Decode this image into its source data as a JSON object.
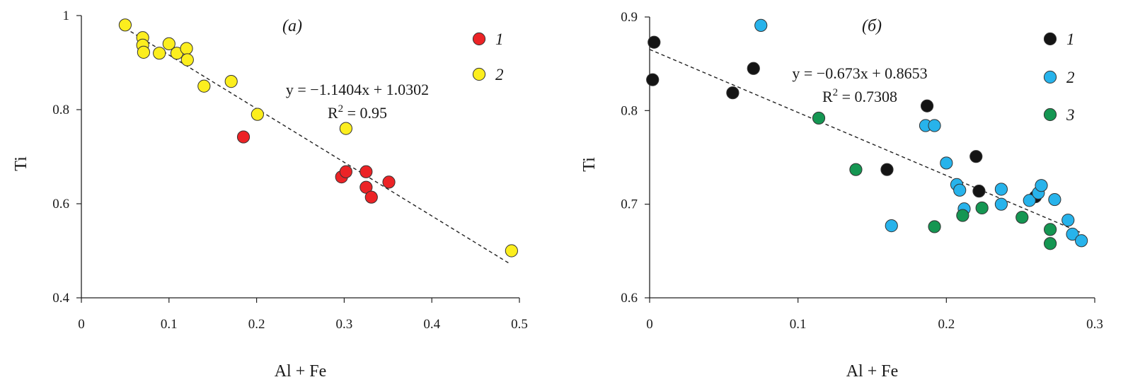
{
  "chart_data": [
    {
      "type": "scatter",
      "panel_label": "(a)",
      "xlabel": "Al + Fe",
      "ylabel": "Ti",
      "xlim": [
        0,
        0.5
      ],
      "ylim": [
        0.4,
        1.0
      ],
      "xticks": [
        "0",
        "0.1",
        "0.2",
        "0.3",
        "0.4",
        "0.5"
      ],
      "yticks": [
        "0.4",
        "0.6",
        "0.8",
        "1"
      ],
      "xtick_values": [
        0,
        0.1,
        0.2,
        0.3,
        0.4,
        0.5
      ],
      "ytick_values": [
        0.4,
        0.6,
        0.8,
        1.0
      ],
      "grid": false,
      "legend_position": "top-right",
      "series": [
        {
          "name": "1",
          "color": "#ec2326",
          "points": [
            [
              0.185,
              0.742
            ],
            [
              0.297,
              0.657
            ],
            [
              0.302,
              0.668
            ],
            [
              0.325,
              0.668
            ],
            [
              0.325,
              0.635
            ],
            [
              0.331,
              0.614
            ],
            [
              0.351,
              0.646
            ]
          ]
        },
        {
          "name": "2",
          "color": "#fcee1e",
          "points": [
            [
              0.05,
              0.98
            ],
            [
              0.07,
              0.953
            ],
            [
              0.07,
              0.937
            ],
            [
              0.071,
              0.922
            ],
            [
              0.089,
              0.92
            ],
            [
              0.1,
              0.94
            ],
            [
              0.109,
              0.92
            ],
            [
              0.12,
              0.93
            ],
            [
              0.121,
              0.906
            ],
            [
              0.14,
              0.85
            ],
            [
              0.171,
              0.86
            ],
            [
              0.201,
              0.79
            ],
            [
              0.302,
              0.76
            ],
            [
              0.491,
              0.5
            ]
          ]
        }
      ],
      "trendline": {
        "slope": -1.1404,
        "intercept": 1.0302,
        "x_range": [
          0.05,
          0.49
        ],
        "equation": "y = −1.1404x + 1.0302",
        "r2_prefix": "R",
        "r2_exp": "2",
        "r2_value": " = 0.95"
      }
    },
    {
      "type": "scatter",
      "panel_label": "(б)",
      "xlabel": "Al + Fe",
      "ylabel": "Ti",
      "xlim": [
        0,
        0.3
      ],
      "ylim": [
        0.6,
        0.9
      ],
      "xticks": [
        "0",
        "0.1",
        "0.2",
        "0.3"
      ],
      "yticks": [
        "0.6",
        "0.7",
        "0.8",
        "0.9"
      ],
      "xtick_values": [
        0,
        0.1,
        0.2,
        0.3
      ],
      "ytick_values": [
        0.6,
        0.7,
        0.8,
        0.9
      ],
      "grid": false,
      "legend_position": "top-right",
      "series": [
        {
          "name": "1",
          "color": "#141414",
          "points": [
            [
              0.003,
              0.873
            ],
            [
              0.002,
              0.833
            ],
            [
              0.056,
              0.819
            ],
            [
              0.07,
              0.845
            ],
            [
              0.16,
              0.737
            ],
            [
              0.187,
              0.805
            ],
            [
              0.22,
              0.751
            ],
            [
              0.222,
              0.714
            ],
            [
              0.26,
              0.708
            ]
          ]
        },
        {
          "name": "2",
          "color": "#27b3eb",
          "points": [
            [
              0.075,
              0.891
            ],
            [
              0.163,
              0.677
            ],
            [
              0.186,
              0.784
            ],
            [
              0.192,
              0.784
            ],
            [
              0.2,
              0.744
            ],
            [
              0.207,
              0.721
            ],
            [
              0.209,
              0.715
            ],
            [
              0.212,
              0.695
            ],
            [
              0.237,
              0.716
            ],
            [
              0.237,
              0.7
            ],
            [
              0.256,
              0.704
            ],
            [
              0.262,
              0.712
            ],
            [
              0.264,
              0.72
            ],
            [
              0.273,
              0.705
            ],
            [
              0.282,
              0.683
            ],
            [
              0.285,
              0.668
            ],
            [
              0.291,
              0.661
            ]
          ]
        },
        {
          "name": "3",
          "color": "#159652",
          "points": [
            [
              0.114,
              0.792
            ],
            [
              0.139,
              0.737
            ],
            [
              0.192,
              0.676
            ],
            [
              0.211,
              0.688
            ],
            [
              0.224,
              0.696
            ],
            [
              0.251,
              0.686
            ],
            [
              0.27,
              0.673
            ],
            [
              0.27,
              0.658
            ]
          ]
        }
      ],
      "trendline": {
        "slope": -0.673,
        "intercept": 0.8653,
        "x_range": [
          0,
          0.29
        ],
        "equation": "y = −0.673x + 0.8653",
        "r2_prefix": "R",
        "r2_exp": "2",
        "r2_value": " = 0.7308"
      }
    }
  ]
}
